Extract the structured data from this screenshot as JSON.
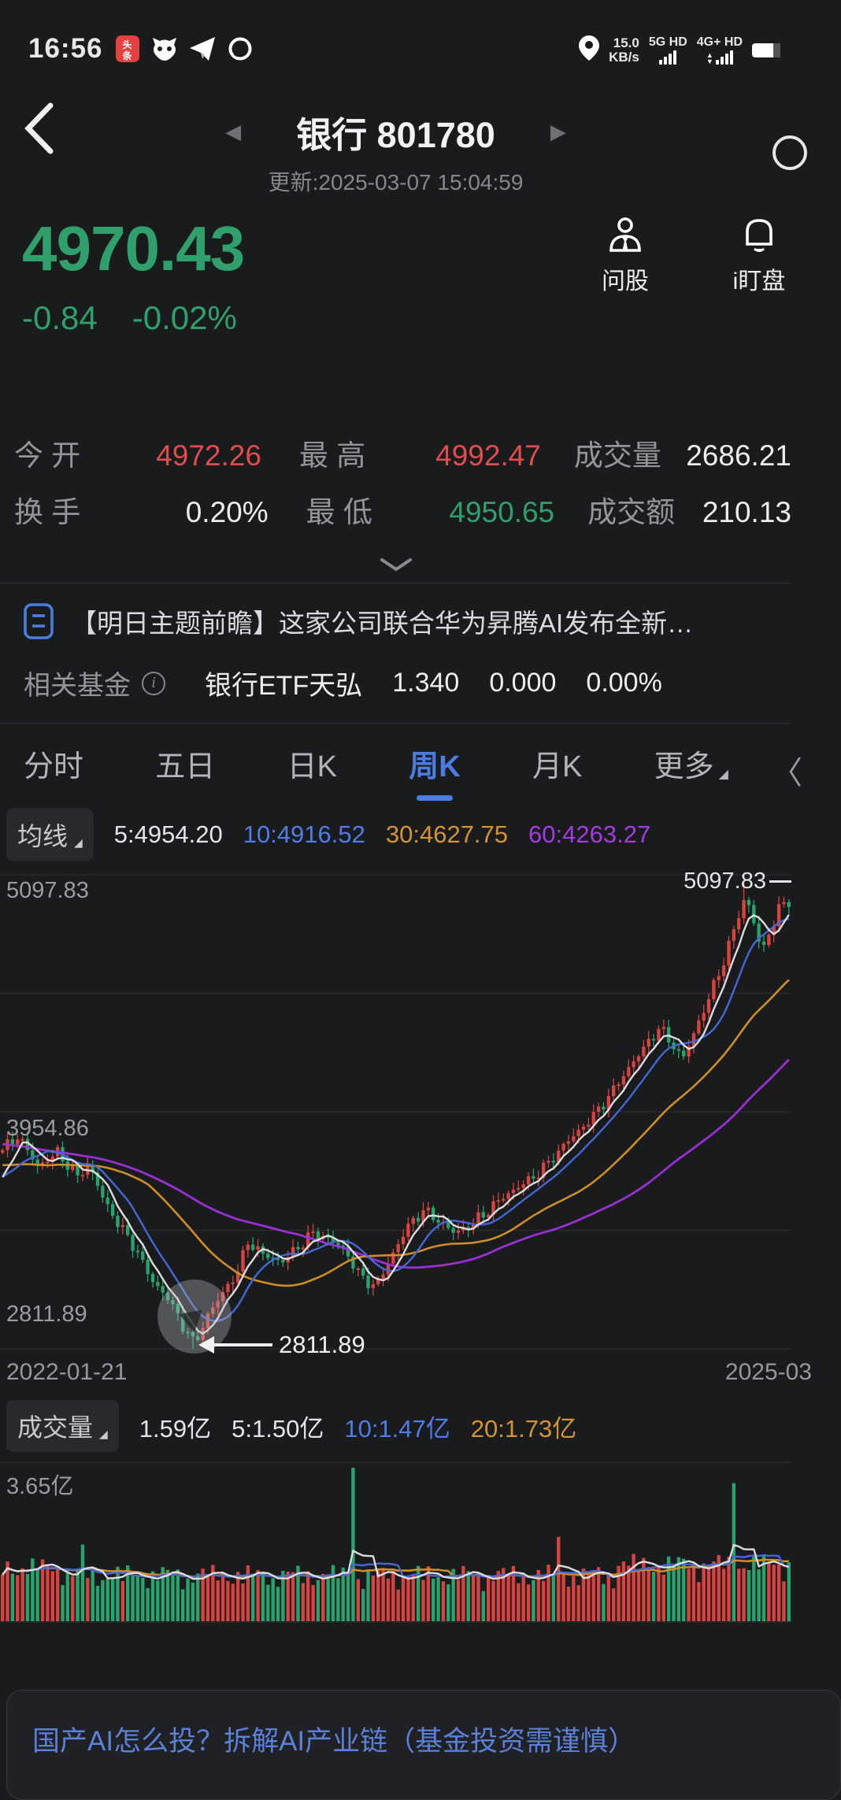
{
  "status_bar": {
    "time": "16:56",
    "net_speed_value": "15.0",
    "net_speed_unit": "KB/s",
    "sim1_label": "5G HD",
    "sim2_label": "4G+ HD"
  },
  "header": {
    "title": "银行 801780",
    "update_text": "更新:2025-03-07 15:04:59"
  },
  "price": {
    "current": "4970.43",
    "change": "-0.84",
    "change_pct": "-0.02%",
    "actions": [
      {
        "label": "问股"
      },
      {
        "label": "i盯盘"
      }
    ]
  },
  "stats": {
    "row1": [
      {
        "label": "今 开",
        "value": "4972.26",
        "color": "red"
      },
      {
        "label": "最 高",
        "value": "4992.47",
        "color": "red"
      },
      {
        "label": "成交量",
        "value": "2686.21",
        "color": "white"
      }
    ],
    "row2": [
      {
        "label": "换 手",
        "value": "0.20%",
        "color": "white"
      },
      {
        "label": "最 低",
        "value": "4950.65",
        "color": "green"
      },
      {
        "label": "成交额",
        "value": "210.13",
        "color": "white"
      }
    ]
  },
  "news": {
    "title": "【明日主题前瞻】这家公司联合华为昇腾AI发布全新…"
  },
  "fund": {
    "label": "相关基金",
    "name": "银行ETF天弘",
    "nav": "1.340",
    "change": "0.000",
    "change_pct": "0.00%"
  },
  "tabs": {
    "items": [
      "分时",
      "五日",
      "日K",
      "周K",
      "月K",
      "更多"
    ],
    "active": "周K"
  },
  "icons": {
    "dropdown_triangle": "◢",
    "prev": "◀",
    "next": "▶",
    "clipped_chevron": "〈"
  },
  "ma_bar": {
    "button": "均线",
    "ma5": "5:4954.20",
    "ma10": "10:4916.52",
    "ma30": "30:4627.75",
    "ma60": "60:4263.27"
  },
  "volume_bar": {
    "button": "成交量",
    "current": "1.59亿",
    "ma5": "5:1.50亿",
    "ma10": "10:1.47亿",
    "ma20": "20:1.73亿"
  },
  "chart_data": {
    "type": "candlestick+volume",
    "period": "weekly",
    "title": "银行 801780 周K",
    "y_axis_labels": {
      "top": "5097.83",
      "mid": "3954.86",
      "low": "2811.89"
    },
    "y_top": 5097.83,
    "y_mid": 3954.86,
    "y_low": 2811.89,
    "peak_marker": "5097.83",
    "low_marker": "2811.89",
    "x_start_label": "2022-01-21",
    "x_end_label": "2025-03",
    "ma_values": {
      "ma5": 4954.2,
      "ma10": 4916.52,
      "ma30": 4627.75,
      "ma60": 4263.27
    },
    "close_anchors": [
      [
        0.0,
        3770
      ],
      [
        0.02,
        3840
      ],
      [
        0.045,
        3690
      ],
      [
        0.07,
        3760
      ],
      [
        0.095,
        3640
      ],
      [
        0.11,
        3700
      ],
      [
        0.13,
        3520
      ],
      [
        0.15,
        3400
      ],
      [
        0.17,
        3290
      ],
      [
        0.19,
        3140
      ],
      [
        0.21,
        3060
      ],
      [
        0.23,
        2920
      ],
      [
        0.245,
        2840
      ],
      [
        0.262,
        2980
      ],
      [
        0.28,
        3080
      ],
      [
        0.3,
        3190
      ],
      [
        0.312,
        3330
      ],
      [
        0.33,
        3270
      ],
      [
        0.355,
        3230
      ],
      [
        0.375,
        3300
      ],
      [
        0.395,
        3370
      ],
      [
        0.415,
        3340
      ],
      [
        0.435,
        3290
      ],
      [
        0.455,
        3160
      ],
      [
        0.475,
        3110
      ],
      [
        0.495,
        3260
      ],
      [
        0.515,
        3400
      ],
      [
        0.535,
        3480
      ],
      [
        0.555,
        3430
      ],
      [
        0.575,
        3370
      ],
      [
        0.595,
        3410
      ],
      [
        0.615,
        3470
      ],
      [
        0.635,
        3540
      ],
      [
        0.655,
        3590
      ],
      [
        0.675,
        3640
      ],
      [
        0.695,
        3710
      ],
      [
        0.715,
        3800
      ],
      [
        0.735,
        3870
      ],
      [
        0.755,
        3950
      ],
      [
        0.775,
        4050
      ],
      [
        0.795,
        4160
      ],
      [
        0.815,
        4260
      ],
      [
        0.835,
        4360
      ],
      [
        0.85,
        4290
      ],
      [
        0.865,
        4210
      ],
      [
        0.88,
        4340
      ],
      [
        0.9,
        4520
      ],
      [
        0.915,
        4660
      ],
      [
        0.93,
        4830
      ],
      [
        0.945,
        5000
      ],
      [
        0.956,
        4860
      ],
      [
        0.966,
        4720
      ],
      [
        0.976,
        4830
      ],
      [
        0.988,
        4940
      ],
      [
        1.0,
        4968
      ]
    ],
    "num_candles": 158,
    "low_candle_index": 38,
    "peak_candle_index": 148,
    "volume": {
      "scale_top_label": "3.65亿",
      "current_label": "1.59亿",
      "spikes": [
        {
          "i": 70,
          "h": 1.0,
          "dir": "green"
        },
        {
          "i": 146,
          "h": 0.9,
          "dir": "green"
        },
        {
          "i": 111,
          "h": 0.55,
          "dir": "red"
        },
        {
          "i": 16,
          "h": 0.5,
          "dir": "green"
        }
      ]
    },
    "colors": {
      "up": "#d7433e",
      "down": "#27a36d",
      "ma5": "#dcdcdf",
      "ma10": "#4468d8",
      "ma30": "#cf8d26",
      "ma60": "#9a2fd4",
      "grid": "rgba(255,255,255,0.09)"
    }
  },
  "banner": {
    "text": "国产AI怎么投？拆解AI产业链（基金投资需谨慎）"
  }
}
